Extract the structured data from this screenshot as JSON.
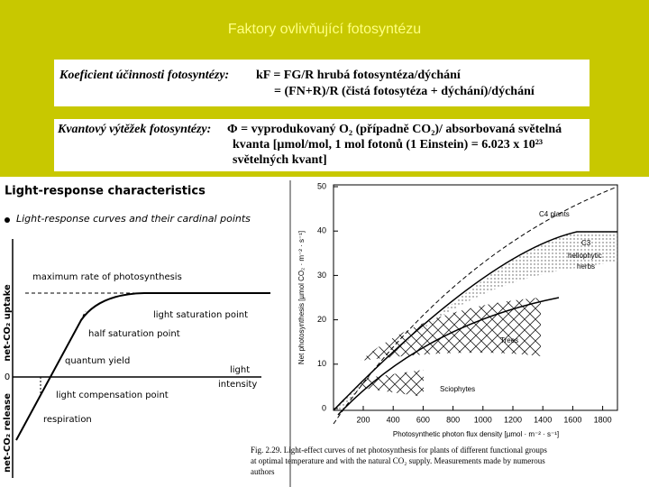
{
  "title": "Faktory ovlivňující fotosyntézu",
  "efficiency": {
    "label": "Koeficient účinnosti fotosyntézy:",
    "lines": [
      "kF = FG/R  hrubá fotosyntéza/dýchání",
      "= (FN+R)/R  (čistá fotosytéza + dýchání)/dýchání"
    ]
  },
  "quantum": {
    "label": "Kvantový výtěžek fotosyntézy:",
    "lines": [
      "Φ = vyprodukovaný O₂ (případně CO₂)/ absorbovaná světelná",
      "kvanta [µmol/mol, 1 mol fotonů (1 Einstein) = 6.023 x 10²³",
      "světelných kvant]"
    ]
  },
  "left_figure": {
    "heading": "Light-response characteristics",
    "bullet": "Light-response curves and their cardinal points",
    "y_upper": "net-CO₂ uptake",
    "y_lower": "net-CO₂ release",
    "zero": "0",
    "labels": {
      "max_rate": "maximum rate of photosynthesis",
      "saturation": "light saturation point",
      "half": "half saturation point",
      "quantum": "quantum yield",
      "light": "light",
      "intensity": "intensity",
      "compensation": "light compensation point",
      "respiration": "respiration"
    }
  },
  "right_figure": {
    "y_label": "Net photosynthesis [µmol CO₂ · m⁻² · s⁻¹]",
    "x_label": "Photosynthetic photon flux density [µmol · m⁻² · s⁻¹]",
    "yticks": [
      "0",
      "10",
      "20",
      "30",
      "40",
      "50"
    ],
    "xticks": [
      "200",
      "400",
      "600",
      "800",
      "1000",
      "1200",
      "1400",
      "1600",
      "1800"
    ],
    "c4": "C4 plants",
    "c3": [
      "C3",
      "heliophytic",
      "herbs"
    ],
    "trees": "Trees",
    "sciophytes": "Sciophytes",
    "caption": [
      "Fig. 2.29. Light-effect curves of net photosynthesis for plants of different functional groups",
      "at optimal temperature and with the natural CO₂ supply. Measurements made by numerous",
      "authors"
    ]
  }
}
